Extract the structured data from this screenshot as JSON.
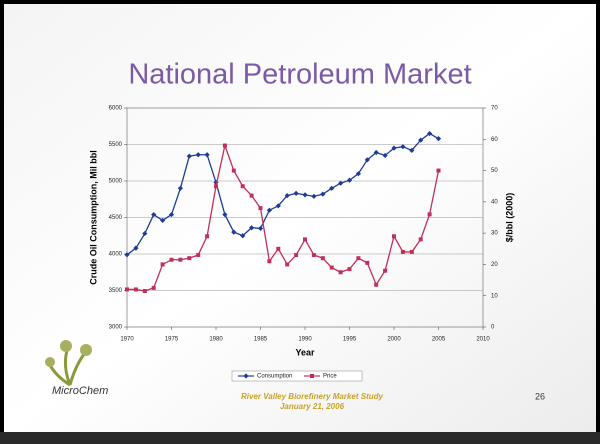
{
  "chart_data": {
    "type": "line",
    "title": "National Petroleum Market",
    "xlabel": "Year",
    "ylabel": "Crude Oil Consumption, Mil bbl",
    "y2label": "$/bbl (2000)",
    "x": [
      1970,
      1971,
      1972,
      1973,
      1974,
      1975,
      1976,
      1977,
      1978,
      1979,
      1980,
      1981,
      1982,
      1983,
      1984,
      1985,
      1986,
      1987,
      1988,
      1989,
      1990,
      1991,
      1992,
      1993,
      1994,
      1995,
      1996,
      1997,
      1998,
      1999,
      2000,
      2001,
      2002,
      2003,
      2004,
      2005
    ],
    "series": [
      {
        "name": "Consumption",
        "color": "#1f3c96",
        "marker": "diamond",
        "values": [
          3990,
          4080,
          4280,
          4540,
          4460,
          4540,
          4900,
          5340,
          5360,
          5360,
          4980,
          4540,
          4300,
          4250,
          4360,
          4350,
          4600,
          4660,
          4800,
          4830,
          4810,
          4790,
          4820,
          4900,
          4970,
          5010,
          5100,
          5290,
          5390,
          5350,
          5450,
          5470,
          5420,
          5560,
          5650,
          5580
        ]
      },
      {
        "name": "Price",
        "color": "#c0305a",
        "marker": "square",
        "axis": "y2",
        "values": [
          12,
          12,
          11.5,
          12.5,
          20,
          21.5,
          21.5,
          22,
          23,
          29,
          45,
          58,
          50,
          45,
          42,
          38,
          21,
          25,
          20,
          23,
          28,
          23,
          22,
          19,
          17.5,
          18.5,
          22,
          20.5,
          13.5,
          18,
          29,
          24,
          24,
          28,
          36,
          50
        ]
      }
    ],
    "xlim": [
      1970,
      2010
    ],
    "xticks": [
      1970,
      1975,
      1980,
      1985,
      1990,
      1995,
      2000,
      2005,
      2010
    ],
    "ylim": [
      3000,
      6000
    ],
    "yticks": [
      3000,
      3500,
      4000,
      4500,
      5000,
      5500,
      6000
    ],
    "y2lim": [
      0,
      70
    ],
    "y2ticks": [
      0,
      10,
      20,
      30,
      40,
      50,
      60,
      70
    ],
    "grid": true,
    "legend": "bottom"
  },
  "slide": {
    "logo": "MicroChem",
    "footer": [
      "River Valley Biorefinery Market Study",
      "January 21, 2006"
    ],
    "page_number": "26"
  }
}
